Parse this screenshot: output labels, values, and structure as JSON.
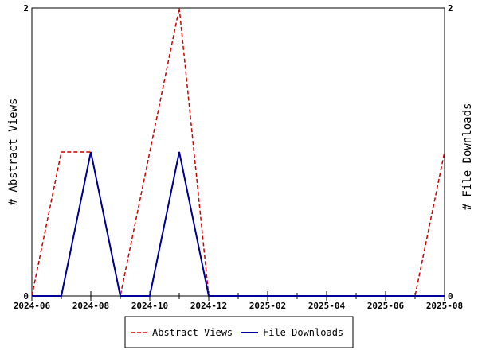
{
  "chart_data": {
    "type": "line",
    "title": "",
    "xlabel": "",
    "ylabel_left": "# Abstract Views",
    "ylabel_right": "# File Downloads",
    "x_tick_labels": [
      "2024-06",
      "2024-08",
      "2024-10",
      "2024-12",
      "2025-02",
      "2025-04",
      "2025-06",
      "2025-08"
    ],
    "x": [
      "2024-06",
      "2024-07",
      "2024-08",
      "2024-09",
      "2024-10",
      "2024-11",
      "2024-12",
      "2025-01",
      "2025-02",
      "2025-03",
      "2025-04",
      "2025-05",
      "2025-06",
      "2025-07",
      "2025-08"
    ],
    "y_left_ticks": [
      "0",
      "2"
    ],
    "y_right_ticks": [
      "0",
      "2"
    ],
    "ylim_left": [
      0,
      2
    ],
    "ylim_right": [
      0,
      2
    ],
    "series": [
      {
        "name": "Abstract Views",
        "axis": "left",
        "color": "#cc0000",
        "dash": "dashed",
        "values": [
          0,
          1,
          1,
          0,
          1,
          2,
          0,
          0,
          0,
          0,
          0,
          0,
          0,
          0,
          1
        ]
      },
      {
        "name": "File Downloads",
        "axis": "right",
        "color": "#000099",
        "dash": "solid",
        "values": [
          0,
          0,
          1,
          0,
          0,
          1,
          0,
          0,
          0,
          0,
          0,
          0,
          0,
          0,
          0
        ]
      }
    ],
    "grid": false,
    "legend_position": "bottom"
  }
}
